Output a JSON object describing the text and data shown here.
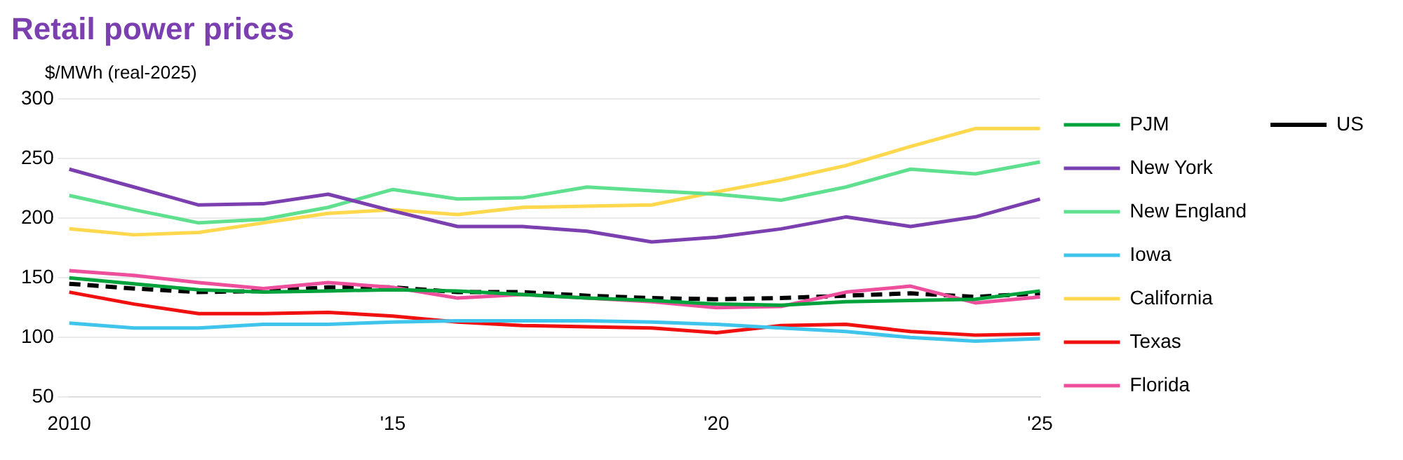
{
  "chart_data": {
    "type": "line",
    "title": "Retail power prices",
    "ylabel": "$/MWh (real-2025)",
    "categories": [
      "2010",
      null,
      null,
      null,
      null,
      "'15",
      null,
      null,
      null,
      null,
      "'20",
      null,
      null,
      null,
      null,
      "'25"
    ],
    "series": [
      {
        "name": "PJM",
        "color": "#00a33b",
        "values": [
          150,
          145,
          140,
          138,
          139,
          140,
          139,
          136,
          133,
          131,
          128,
          127,
          130,
          131,
          132,
          139
        ]
      },
      {
        "name": "New York",
        "color": "#7b3fb0",
        "values": [
          241,
          226,
          211,
          212,
          220,
          206,
          193,
          193,
          189,
          180,
          184,
          191,
          201,
          193,
          201,
          216
        ]
      },
      {
        "name": "New England",
        "color": "#5ee08e",
        "values": [
          219,
          207,
          196,
          199,
          209,
          224,
          216,
          217,
          226,
          223,
          220,
          215,
          226,
          241,
          237,
          247
        ]
      },
      {
        "name": "Iowa",
        "color": "#3fc4ec",
        "values": [
          112,
          108,
          108,
          111,
          111,
          113,
          114,
          114,
          114,
          113,
          111,
          108,
          105,
          100,
          97,
          99
        ]
      },
      {
        "name": "California",
        "color": "#ffd84d",
        "values": [
          191,
          186,
          188,
          196,
          204,
          207,
          203,
          209,
          210,
          211,
          222,
          232,
          244,
          260,
          275,
          275
        ]
      },
      {
        "name": "Texas",
        "color": "#f01010",
        "values": [
          138,
          128,
          120,
          120,
          121,
          118,
          113,
          110,
          109,
          108,
          104,
          110,
          111,
          105,
          102,
          103
        ]
      },
      {
        "name": "Florida",
        "color": "#ee4f9c",
        "values": [
          156,
          152,
          146,
          141,
          146,
          142,
          133,
          136,
          133,
          130,
          125,
          126,
          138,
          143,
          129,
          134
        ]
      },
      {
        "name": "US",
        "color": "#000000",
        "line_style": "dashed",
        "values": [
          145,
          141,
          138,
          139,
          142,
          142,
          138,
          138,
          135,
          133,
          132,
          133,
          135,
          137,
          134,
          137
        ]
      }
    ],
    "ylim": [
      50,
      300
    ],
    "yticks": [
      50,
      100,
      150,
      200,
      250,
      300
    ],
    "grid": "y",
    "legend": "right"
  }
}
